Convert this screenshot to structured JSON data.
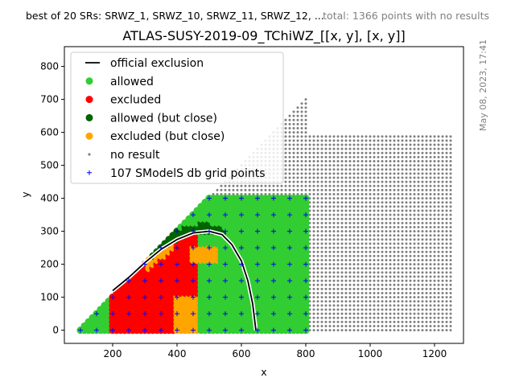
{
  "header": {
    "left_note": "best of 20 SRs: SRWZ_1, SRWZ_10, SRWZ_11, SRWZ_12, ...",
    "right_note": "total: 1366 points with no results",
    "side_stamp": "May 08, 2023, 17:41"
  },
  "chart_data": {
    "type": "scatter",
    "title": "ATLAS-SUSY-2019-09_TChiWZ_[[x, y], [x, y]]",
    "xlabel": "x",
    "ylabel": "y",
    "xlim": [
      50,
      1290
    ],
    "ylim": [
      -40,
      860
    ],
    "xticks": [
      200,
      400,
      600,
      800,
      1000,
      1200
    ],
    "yticks": [
      0,
      100,
      200,
      300,
      400,
      500,
      600,
      700,
      800
    ],
    "grid": false,
    "legend_position": "top-left",
    "colors": {
      "official": "#000000",
      "allowed": "#32cd32",
      "excluded": "#ff0000",
      "allowed_close": "#006400",
      "excluded_close": "#ffa500",
      "no_result": "#808080",
      "grid_points": "#0000ff"
    },
    "legend": [
      {
        "key": "official",
        "label": "official exclusion",
        "marker": "line"
      },
      {
        "key": "allowed",
        "label": "allowed",
        "marker": "dot"
      },
      {
        "key": "excluded",
        "label": "excluded",
        "marker": "dot"
      },
      {
        "key": "allowed_close",
        "label": "allowed (but close)",
        "marker": "dot"
      },
      {
        "key": "excluded_close",
        "label": "excluded (but close)",
        "marker": "dot"
      },
      {
        "key": "no_result",
        "label": "no result",
        "marker": "small"
      },
      {
        "key": "grid_points",
        "label": "107 SModelS db grid points",
        "marker": "plus"
      }
    ],
    "official_exclusion": {
      "x": [
        200,
        250,
        300,
        350,
        400,
        450,
        500,
        540,
        570,
        600,
        620,
        635,
        645
      ],
      "y": [
        120,
        160,
        205,
        245,
        275,
        295,
        300,
        290,
        260,
        210,
        150,
        80,
        0
      ]
    },
    "series": [
      {
        "name": "allowed",
        "region": "green band above and right of the exclusion curve, x 150-810, y 0-400"
      },
      {
        "name": "excluded",
        "region": "inside the curve, x 100-450, y 0-200"
      },
      {
        "name": "allowed (but close)",
        "region": "along the curve edge, x 250-530"
      },
      {
        "name": "excluded (but close)",
        "region": "x 230-470 near the curve"
      },
      {
        "name": "no result",
        "region": "outer grid, x 100-1250, y 0-820"
      },
      {
        "name": "107 SModelS db grid points",
        "region": "x 100-800 step 50, y 0-400 step 50"
      }
    ]
  }
}
